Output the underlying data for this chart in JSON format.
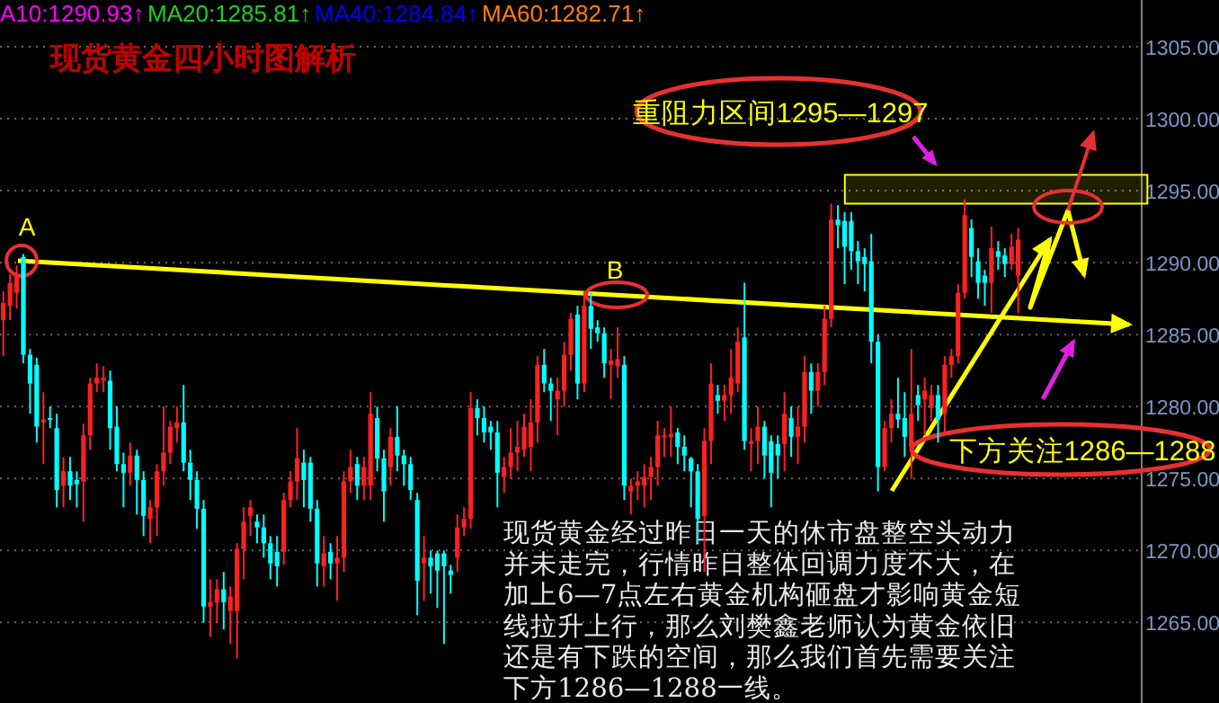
{
  "chart_data": {
    "type": "candlestick",
    "title": "现货黄金四小时图解析",
    "categories": [
      null,
      null,
      null,
      null,
      null,
      null,
      null,
      null,
      null,
      null,
      null,
      null,
      null,
      null,
      null,
      null,
      null,
      null,
      null,
      null,
      null,
      null,
      null,
      null,
      null,
      null,
      null,
      null,
      null,
      null,
      null,
      null,
      null,
      null,
      null,
      null,
      null,
      null,
      null,
      null,
      null,
      null,
      null,
      null,
      null,
      null,
      null,
      null,
      null,
      null,
      null,
      null,
      null,
      null,
      null,
      null,
      null,
      null,
      null,
      null,
      null,
      null,
      null,
      null,
      null,
      null,
      null,
      null,
      null,
      null,
      null,
      null,
      null,
      null,
      null,
      null,
      null,
      null,
      null,
      null,
      null,
      null,
      null,
      null,
      null,
      null,
      null,
      null,
      null,
      null,
      null,
      null,
      null,
      null,
      null,
      null,
      null,
      null,
      null,
      null,
      null,
      null,
      null,
      null,
      null,
      null,
      null,
      null,
      null,
      null,
      null,
      null,
      null,
      null,
      null,
      null,
      null,
      null,
      null,
      null,
      null,
      null,
      null,
      null,
      null,
      null,
      null,
      null,
      null,
      null,
      null,
      null,
      null,
      null,
      null,
      null,
      null,
      null,
      null,
      null,
      null,
      null,
      null,
      null,
      null,
      null,
      null,
      null,
      null,
      null,
      null,
      null,
      null,
      null,
      null,
      null,
      null,
      null,
      null,
      null,
      null,
      null,
      null,
      null,
      null,
      null,
      null,
      null,
      null,
      null,
      null
    ],
    "ohlc": [
      [
        1286.0,
        1288.0,
        1283.5,
        1287.2
      ],
      [
        1287.0,
        1289.2,
        1286.0,
        1288.6
      ],
      [
        1287.9,
        1289.8,
        1286.8,
        1289.1
      ],
      [
        1290.4,
        1290.6,
        1283.0,
        1283.6
      ],
      [
        1283.6,
        1284.0,
        1279.5,
        1281.6
      ],
      [
        1282.9,
        1283.4,
        1277.5,
        1278.6
      ],
      [
        1278.9,
        1281.0,
        1276.0,
        1279.1
      ],
      [
        1279.2,
        1280.0,
        1278.5,
        1279.1
      ],
      [
        1278.5,
        1279.5,
        1273.0,
        1274.2
      ],
      [
        1274.5,
        1276.5,
        1273.0,
        1275.5
      ],
      [
        1275.5,
        1276.5,
        1273.5,
        1274.5
      ],
      [
        1274.9,
        1275.5,
        1273.0,
        1274.6
      ],
      [
        1274.8,
        1278.8,
        1272.0,
        1278.0
      ],
      [
        1278.0,
        1282.0,
        1277.0,
        1281.6
      ],
      [
        1281.6,
        1283.0,
        1281.0,
        1282.0
      ],
      [
        1281.8,
        1282.8,
        1281.0,
        1282.0
      ],
      [
        1281.8,
        1282.5,
        1277.0,
        1278.5
      ],
      [
        1278.6,
        1280.0,
        1275.5,
        1276.0
      ],
      [
        1276.0,
        1276.8,
        1273.0,
        1275.4
      ],
      [
        1275.4,
        1277.5,
        1274.5,
        1276.6
      ],
      [
        1276.6,
        1277.0,
        1272.5,
        1274.9
      ],
      [
        1274.9,
        1275.5,
        1271.0,
        1272.4
      ],
      [
        1272.2,
        1273.5,
        1270.5,
        1273.0
      ],
      [
        1273.0,
        1276.0,
        1271.0,
        1275.5
      ],
      [
        1275.5,
        1280.0,
        1274.5,
        1276.8
      ],
      [
        1276.8,
        1279.0,
        1276.0,
        1278.6
      ],
      [
        1278.5,
        1280.0,
        1277.5,
        1278.9
      ],
      [
        1278.9,
        1281.5,
        1275.5,
        1276.1
      ],
      [
        1276.1,
        1277.0,
        1273.5,
        1274.9
      ],
      [
        1274.9,
        1275.5,
        1271.5,
        1272.9
      ],
      [
        1272.9,
        1273.5,
        1265.0,
        1266.1
      ],
      [
        1266.1,
        1268.0,
        1264.0,
        1266.4
      ],
      [
        1266.4,
        1268.0,
        1265.0,
        1267.3
      ],
      [
        1267.3,
        1268.5,
        1264.5,
        1266.4
      ],
      [
        1265.8,
        1267.5,
        1263.5,
        1266.8
      ],
      [
        1265.8,
        1270.5,
        1262.5,
        1270.1
      ],
      [
        1270.1,
        1273.0,
        1268.0,
        1272.0
      ],
      [
        1272.4,
        1273.5,
        1271.0,
        1273.0
      ],
      [
        1272.0,
        1272.5,
        1270.5,
        1271.6
      ],
      [
        1271.6,
        1272.5,
        1269.5,
        1270.5
      ],
      [
        1270.5,
        1271.0,
        1268.0,
        1269.1
      ],
      [
        1269.9,
        1271.0,
        1267.5,
        1268.9
      ],
      [
        1269.9,
        1274.0,
        1269.0,
        1273.5
      ],
      [
        1273.5,
        1275.5,
        1273.0,
        1274.8
      ],
      [
        1274.8,
        1278.5,
        1273.5,
        1276.4
      ],
      [
        1276.1,
        1277.0,
        1273.0,
        1274.9
      ],
      [
        1276.1,
        1276.5,
        1272.0,
        1272.9
      ],
      [
        1272.9,
        1273.5,
        1267.5,
        1269.1
      ],
      [
        1268.9,
        1271.0,
        1267.5,
        1269.8
      ],
      [
        1269.9,
        1270.5,
        1268.0,
        1269.1
      ],
      [
        1269.1,
        1271.0,
        1266.5,
        1269.5
      ],
      [
        1269.5,
        1275.5,
        1268.5,
        1274.8
      ],
      [
        1274.8,
        1277.0,
        1274.0,
        1275.8
      ],
      [
        1276.0,
        1276.5,
        1273.5,
        1274.5
      ],
      [
        1274.5,
        1276.5,
        1273.5,
        1275.8
      ],
      [
        1274.5,
        1281.0,
        1273.5,
        1279.5
      ],
      [
        1279.2,
        1280.0,
        1275.5,
        1276.4
      ],
      [
        1276.4,
        1277.0,
        1272.0,
        1274.1
      ],
      [
        1275.8,
        1278.5,
        1274.5,
        1277.9
      ],
      [
        1277.9,
        1280.0,
        1275.5,
        1276.6
      ],
      [
        1276.6,
        1277.0,
        1274.5,
        1276.0
      ],
      [
        1276.0,
        1276.5,
        1273.5,
        1274.2
      ],
      [
        1273.5,
        1274.0,
        1265.5,
        1267.9
      ],
      [
        1269.1,
        1271.0,
        1266.5,
        1269.5
      ],
      [
        1269.5,
        1270.0,
        1267.0,
        1268.9
      ],
      [
        1269.8,
        1270.0,
        1266.0,
        1268.6
      ],
      [
        1269.8,
        1270.0,
        1263.5,
        1268.9
      ],
      [
        1268.6,
        1269.0,
        1267.0,
        1268.3
      ],
      [
        1269.5,
        1272.5,
        1268.5,
        1271.6
      ],
      [
        1271.6,
        1273.0,
        1271.0,
        1272.2
      ],
      [
        1272.2,
        1281.0,
        1271.5,
        1279.9
      ],
      [
        1279.9,
        1280.5,
        1278.0,
        1279.2
      ],
      [
        1279.2,
        1280.0,
        1277.5,
        1278.2
      ],
      [
        1278.6,
        1279.0,
        1277.0,
        1278.2
      ],
      [
        1278.2,
        1279.0,
        1273.0,
        1275.4
      ],
      [
        1275.1,
        1276.5,
        1274.0,
        1275.8
      ],
      [
        1275.8,
        1278.5,
        1275.0,
        1276.8
      ],
      [
        1276.8,
        1279.0,
        1275.5,
        1277.2
      ],
      [
        1277.0,
        1279.5,
        1276.5,
        1278.6
      ],
      [
        1277.2,
        1280.5,
        1275.5,
        1278.9
      ],
      [
        1278.9,
        1283.5,
        1277.5,
        1282.9
      ],
      [
        1282.9,
        1284.0,
        1281.0,
        1281.6
      ],
      [
        1281.6,
        1282.0,
        1279.0,
        1281.1
      ],
      [
        1280.5,
        1282.0,
        1278.0,
        1281.1
      ],
      [
        1281.1,
        1284.5,
        1280.0,
        1283.6
      ],
      [
        1283.6,
        1286.5,
        1282.5,
        1286.1
      ],
      [
        1286.4,
        1287.0,
        1280.5,
        1281.6
      ],
      [
        1281.6,
        1288.0,
        1281.0,
        1287.0
      ],
      [
        1287.0,
        1288.0,
        1284.0,
        1285.4
      ],
      [
        1285.5,
        1286.0,
        1284.5,
        1285.1
      ],
      [
        1285.1,
        1285.5,
        1282.0,
        1283.0
      ],
      [
        1282.9,
        1284.0,
        1280.5,
        1283.2
      ],
      [
        1282.8,
        1285.5,
        1282.0,
        1283.3
      ],
      [
        1282.9,
        1283.5,
        1273.5,
        1274.5
      ],
      [
        1274.1,
        1275.0,
        1272.5,
        1274.5
      ],
      [
        1274.5,
        1275.5,
        1273.5,
        1274.8
      ],
      [
        1274.5,
        1276.0,
        1273.0,
        1275.1
      ],
      [
        1275.1,
        1276.5,
        1273.5,
        1275.8
      ],
      [
        1275.8,
        1279.0,
        1274.5,
        1278.0
      ],
      [
        1277.9,
        1278.5,
        1276.5,
        1278.0
      ],
      [
        1277.9,
        1280.0,
        1276.5,
        1278.1
      ],
      [
        1278.2,
        1278.5,
        1276.0,
        1277.2
      ],
      [
        1277.2,
        1278.0,
        1275.5,
        1276.6
      ],
      [
        1276.4,
        1276.5,
        1273.0,
        1275.5
      ],
      [
        1275.5,
        1276.0,
        1270.5,
        1272.2
      ],
      [
        1272.4,
        1278.5,
        1268.5,
        1277.6
      ],
      [
        1277.6,
        1283.0,
        1276.0,
        1281.6
      ],
      [
        1280.8,
        1281.5,
        1279.5,
        1280.4
      ],
      [
        1280.4,
        1281.5,
        1279.0,
        1280.8
      ],
      [
        1280.8,
        1284.0,
        1279.5,
        1282.0
      ],
      [
        1281.6,
        1285.5,
        1281.0,
        1284.5
      ],
      [
        1284.8,
        1288.6,
        1277.0,
        1277.6
      ],
      [
        1277.4,
        1278.5,
        1275.5,
        1277.6
      ],
      [
        1277.6,
        1280.0,
        1276.0,
        1278.6
      ],
      [
        1278.6,
        1279.0,
        1275.0,
        1276.6
      ],
      [
        1277.6,
        1278.0,
        1273.0,
        1275.4
      ],
      [
        1277.4,
        1278.0,
        1275.0,
        1276.6
      ],
      [
        1277.4,
        1281.0,
        1275.5,
        1279.5
      ],
      [
        1279.2,
        1280.0,
        1276.5,
        1277.9
      ],
      [
        1277.9,
        1280.0,
        1276.0,
        1278.6
      ],
      [
        1278.6,
        1283.5,
        1277.5,
        1282.4
      ],
      [
        1282.4,
        1283.0,
        1279.5,
        1281.1
      ],
      [
        1281.1,
        1283.0,
        1280.0,
        1282.4
      ],
      [
        1282.4,
        1287.0,
        1281.5,
        1286.1
      ],
      [
        1286.1,
        1294.1,
        1285.5,
        1293.0
      ],
      [
        1293.0,
        1294.0,
        1291.0,
        1292.6
      ],
      [
        1292.9,
        1293.5,
        1288.5,
        1291.1
      ],
      [
        1292.9,
        1293.5,
        1289.5,
        1290.8
      ],
      [
        1290.8,
        1291.5,
        1288.5,
        1290.1
      ],
      [
        1290.4,
        1291.0,
        1288.0,
        1289.9
      ],
      [
        1290.1,
        1292.0,
        1283.0,
        1284.5
      ],
      [
        1284.5,
        1285.0,
        1274.1,
        1275.8
      ],
      [
        1275.8,
        1279.0,
        1275.5,
        1278.5
      ],
      [
        1278.5,
        1280.5,
        1277.5,
        1279.5
      ],
      [
        1279.5,
        1282.0,
        1278.5,
        1279.1
      ],
      [
        1279.2,
        1281.0,
        1276.5,
        1277.9
      ],
      [
        1277.2,
        1284.0,
        1275.0,
        1279.5
      ],
      [
        1280.8,
        1281.5,
        1279.0,
        1280.1
      ],
      [
        1280.5,
        1282.0,
        1278.0,
        1281.1
      ],
      [
        1279.9,
        1281.5,
        1279.0,
        1280.8
      ],
      [
        1280.8,
        1281.5,
        1277.5,
        1279.1
      ],
      [
        1279.5,
        1283.5,
        1278.0,
        1282.9
      ],
      [
        1282.9,
        1284.0,
        1282.0,
        1283.5
      ],
      [
        1283.5,
        1288.5,
        1283.0,
        1287.9
      ],
      [
        1287.9,
        1294.4,
        1287.5,
        1293.3
      ],
      [
        1292.4,
        1293.0,
        1289.0,
        1290.4
      ],
      [
        1290.1,
        1291.0,
        1287.5,
        1288.6
      ],
      [
        1289.1,
        1289.5,
        1287.0,
        1288.6
      ],
      [
        1288.6,
        1292.5,
        1286.5,
        1291.0
      ],
      [
        1290.8,
        1291.5,
        1289.5,
        1290.4
      ],
      [
        1290.5,
        1291.0,
        1289.0,
        1289.9
      ],
      [
        1289.9,
        1292.0,
        1289.5,
        1291.1
      ],
      [
        1289.1,
        1292.4,
        1286.5,
        1291.6
      ],
      null,
      null,
      null,
      null,
      null,
      null,
      null,
      null,
      null,
      null,
      null,
      null,
      null,
      null,
      null,
      null,
      null,
      null
    ],
    "ylim": [
      1259.4,
      1308.25
    ],
    "yticks": [
      {
        "value": 1265,
        "label": "1265.00"
      },
      {
        "value": 1270,
        "label": "1270.00"
      },
      {
        "value": 1275,
        "label": "1275.00"
      },
      {
        "value": 1280,
        "label": "1280.00"
      },
      {
        "value": 1285,
        "label": "1285.00"
      },
      {
        "value": 1290,
        "label": "1290.00"
      },
      {
        "value": 1295,
        "label": "1295.00"
      },
      {
        "value": 1300,
        "label": "1300.00"
      },
      {
        "value": 1305,
        "label": "1305.00"
      }
    ],
    "grid": "y",
    "tick_labels": "y",
    "bands": [
      {
        "axis": "y",
        "from": 1294.1,
        "to": 1296.1,
        "color": "#ffff00"
      }
    ],
    "annotations": [
      "A10:1290.93↑",
      "MA20:1285.81↑",
      "MA40:1284.84↑",
      "MA60:1282.71↑",
      "A",
      "B",
      "重阻力区间1295—1297",
      "下方关注1286—1288",
      "现货黄金经过昨日一天的休市盘整空头动力并未走完，行情昨日整体回调力度不大，在加上6—7点左右黄金机构砸盘才影响黄金短线拉升上行，那么刘樊鑫老师认为黄金依旧还是有下跌的空间，那么我们首先需要关注下方1286—1288一线。"
    ]
  }
}
